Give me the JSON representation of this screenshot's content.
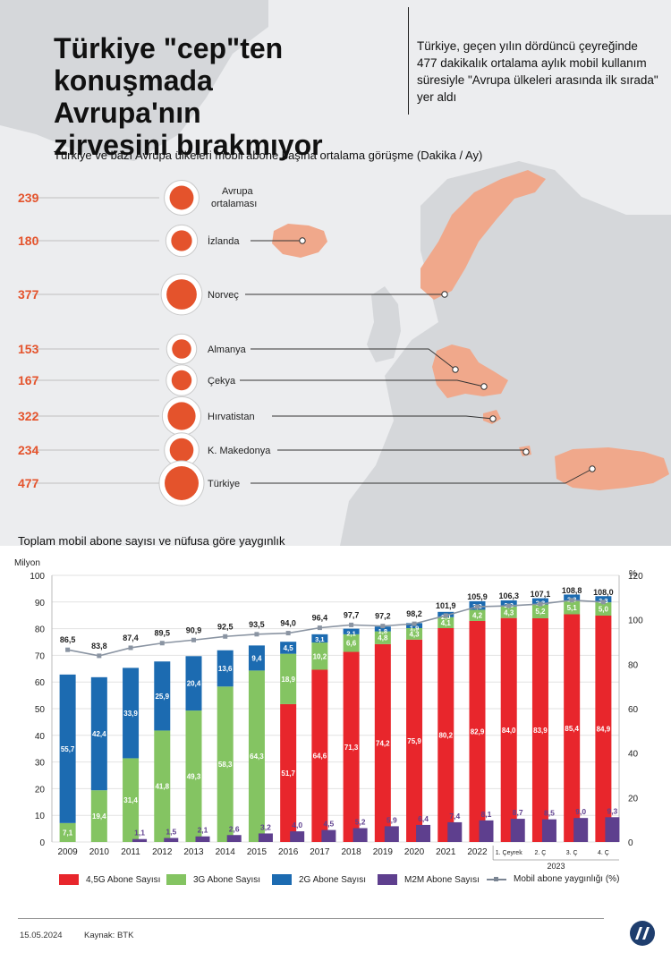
{
  "header": {
    "title_lines": [
      "Türkiye \"cep\"ten",
      "konuşmada Avrupa'nın",
      "zirvesini bırakmıyor"
    ],
    "note": "Türkiye, geçen yılın dördüncü çeyreğinde 477 dakikalık ortalama aylık mobil kullanım süresiyle \"Avrupa ülkeleri arasında ilk sırada\" yer aldı"
  },
  "colors": {
    "accent": "#e4532c",
    "g45": "#e8262c",
    "g3": "#84c462",
    "g2": "#1c6bb1",
    "m2m": "#5e3f8e",
    "line": "#8a94a2",
    "map_land": "#d5d7da",
    "map_highlight": "#f0a88b"
  },
  "chart_data": [
    {
      "type": "bubble",
      "title": "Türkiye ve bazı Avrupa ülkeleri mobil abone başına ortalama görüşme (Dakika / Ay)",
      "items": [
        {
          "label": "Avrupa ortalaması",
          "value": 239
        },
        {
          "label": "İzlanda",
          "value": 180
        },
        {
          "label": "Norveç",
          "value": 377
        },
        {
          "label": "Almanya",
          "value": 153
        },
        {
          "label": "Çekya",
          "value": 167
        },
        {
          "label": "Hırvatistan",
          "value": 322
        },
        {
          "label": "K. Makedonya",
          "value": 234
        },
        {
          "label": "Türkiye",
          "value": 477
        }
      ]
    },
    {
      "type": "bar",
      "stacked": true,
      "title": "Toplam mobil abone sayısı ve nüfusa göre yaygınlık",
      "ylabel_left": "Milyon",
      "ylabel_right": "%",
      "ylim_left": [
        0,
        100
      ],
      "ylim_right": [
        0,
        120
      ],
      "yticks_left": [
        0,
        10,
        20,
        30,
        40,
        50,
        60,
        70,
        80,
        90,
        100
      ],
      "yticks_right": [
        0,
        20,
        40,
        60,
        80,
        100,
        120
      ],
      "grid": true,
      "categories": [
        "2009",
        "2010",
        "2011",
        "2012",
        "2013",
        "2014",
        "2015",
        "2016",
        "2017",
        "2018",
        "2019",
        "2020",
        "2021",
        "2022",
        "1. Çeyrek",
        "2. Ç",
        "3. Ç",
        "4. Ç"
      ],
      "category_group": {
        "label": "2023",
        "from": 14,
        "to": 17
      },
      "series": [
        {
          "name": "4,5G Abone Sayısı",
          "values": [
            null,
            null,
            null,
            null,
            null,
            null,
            null,
            51.7,
            64.6,
            71.3,
            74.2,
            75.9,
            80.2,
            82.9,
            84.0,
            83.9,
            85.4,
            84.9
          ]
        },
        {
          "name": "3G Abone Sayısı",
          "values": [
            7.1,
            19.4,
            31.4,
            41.8,
            49.3,
            58.3,
            64.3,
            18.9,
            10.2,
            6.6,
            4.8,
            4.3,
            4.1,
            4.2,
            4.3,
            5.2,
            5.1,
            5.0
          ]
        },
        {
          "name": "2G Abone Sayısı",
          "values": [
            55.7,
            42.4,
            33.9,
            25.9,
            20.4,
            13.6,
            9.4,
            4.5,
            3.1,
            2.1,
            1.8,
            1.9,
            2.0,
            3.2,
            2.3,
            2.3,
            2.3,
            2.3
          ]
        },
        {
          "name": "M2M Abone Sayısı",
          "values": [
            null,
            null,
            1.1,
            1.5,
            2.1,
            2.6,
            3.2,
            4.0,
            4.5,
            5.2,
            5.9,
            6.4,
            7.4,
            8.1,
            8.7,
            8.5,
            9.0,
            9.3
          ]
        },
        {
          "name": "Mobil abone yaygınlığı (%)",
          "axis": "right",
          "values": [
            86.5,
            83.8,
            87.4,
            89.5,
            90.9,
            92.5,
            93.5,
            94.0,
            96.4,
            97.7,
            97.2,
            98.2,
            101.9,
            105.9,
            106.3,
            107.1,
            108.8,
            108.0
          ]
        }
      ]
    }
  ],
  "labels": {
    "legend": [
      "4,5G Abone Sayısı",
      "3G Abone Sayısı",
      "2G Abone Sayısı",
      "M2M Abone Sayısı",
      "Mobil abone yaygınlığı (%)"
    ]
  },
  "footer": {
    "date": "15.05.2024",
    "source": "Kaynak: BTK"
  }
}
